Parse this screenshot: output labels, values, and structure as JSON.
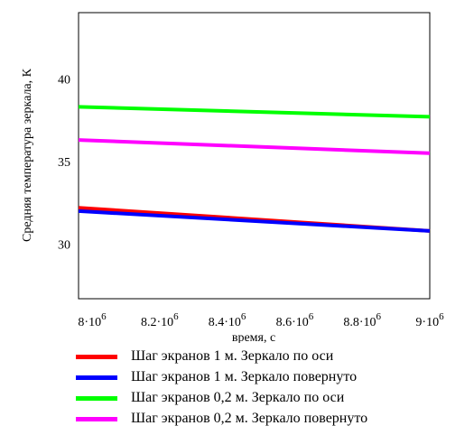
{
  "chart_data": {
    "type": "line",
    "xlabel": "время, с",
    "ylabel": "Средняя температура зеркала, К",
    "xlim": [
      7960000,
      9000000
    ],
    "ylim": [
      26.7,
      44.0
    ],
    "xticks": [
      {
        "value": 8000000,
        "mantissa": "8",
        "exp": "6"
      },
      {
        "value": 8200000,
        "mantissa": "8.2",
        "exp": "6"
      },
      {
        "value": 8400000,
        "mantissa": "8.4",
        "exp": "6"
      },
      {
        "value": 8600000,
        "mantissa": "8.6",
        "exp": "6"
      },
      {
        "value": 8800000,
        "mantissa": "8.8",
        "exp": "6"
      },
      {
        "value": 9000000,
        "mantissa": "9",
        "exp": "6"
      }
    ],
    "yticks": [
      30,
      35,
      40
    ],
    "x": [
      7960000,
      9000000
    ],
    "series": [
      {
        "name": "Шаг экранов 1 м. Зеркало по оси",
        "color": "#ff0000",
        "values": [
          32.2,
          30.8
        ]
      },
      {
        "name": "Шаг экранов 1 м. Зеркало повернуто",
        "color": "#0000ff",
        "values": [
          32.0,
          30.8
        ]
      },
      {
        "name": "Шаг экранов 0,2 м. Зеркало по оси",
        "color": "#00ff00",
        "values": [
          38.3,
          37.7
        ]
      },
      {
        "name": "Шаг экранов 0,2 м. Зеркало повернуто",
        "color": "#ff00ff",
        "values": [
          36.3,
          35.5
        ]
      }
    ],
    "grid": false,
    "legend_position": "bottom"
  }
}
